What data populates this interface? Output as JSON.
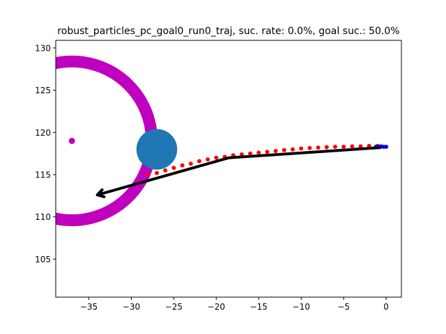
{
  "chart_data": {
    "type": "scatter",
    "title": "robust_particles_pc_goal0_run0_traj, suc. rate: 0.0%, goal suc.: 50.0%",
    "xlabel": "",
    "ylabel": "",
    "xlim": [
      -38.9,
      1.8
    ],
    "ylim": [
      100.5,
      130.9
    ],
    "grid": false,
    "xticks": [
      -35,
      -30,
      -25,
      -20,
      -15,
      -10,
      -5,
      0
    ],
    "xtick_labels": [
      "−35",
      "−30",
      "−25",
      "−20",
      "−15",
      "−10",
      "−5",
      "0"
    ],
    "yticks": [
      105,
      110,
      115,
      120,
      125,
      130
    ],
    "ytick_labels": [
      "105",
      "110",
      "115",
      "120",
      "125",
      "130"
    ],
    "goal_ring": {
      "center": [
        -37,
        119
      ],
      "inner_radius": 8.7,
      "outer_radius": 10.1,
      "color": "#bf00bf"
    },
    "goal_point": {
      "x": -37,
      "y": 119,
      "color": "#bf00bf"
    },
    "obstacle": {
      "center": [
        -27,
        118
      ],
      "radius": 2.4,
      "color": "#1f77b4"
    },
    "series": [
      {
        "color": "#ff0000",
        "x": [
          -28.0,
          -27.0,
          -26.0,
          -25.0,
          -24.0,
          -23.0,
          -22.0,
          -21.0,
          -20.0,
          -19.0,
          -18.0,
          -17.0,
          -16.0,
          -15.0,
          -14.0,
          -13.0,
          -12.0,
          -11.0,
          -10.0,
          -9.0,
          -8.0,
          -7.0,
          -6.0,
          -5.0,
          -4.0,
          -3.0,
          -2.0,
          -1.0
        ],
        "y": [
          115.0,
          115.2,
          115.5,
          115.8,
          116.1,
          116.3,
          116.6,
          116.8,
          117.0,
          117.1,
          117.3,
          117.4,
          117.5,
          117.6,
          117.7,
          117.8,
          117.9,
          118.0,
          118.1,
          118.15,
          118.2,
          118.25,
          118.3,
          118.3,
          118.35,
          118.35,
          118.4,
          118.4
        ]
      },
      {
        "color": "#0000ff",
        "x": [
          -1.2,
          -0.9,
          -0.6,
          -0.3,
          0.0
        ],
        "y": [
          118.3,
          118.3,
          118.35,
          118.3,
          118.3
        ]
      },
      {
        "color": "#000000",
        "x": [
          -0.7,
          -18.5,
          -34.0
        ],
        "y": [
          118.2,
          117.0,
          112.6
        ]
      }
    ]
  }
}
